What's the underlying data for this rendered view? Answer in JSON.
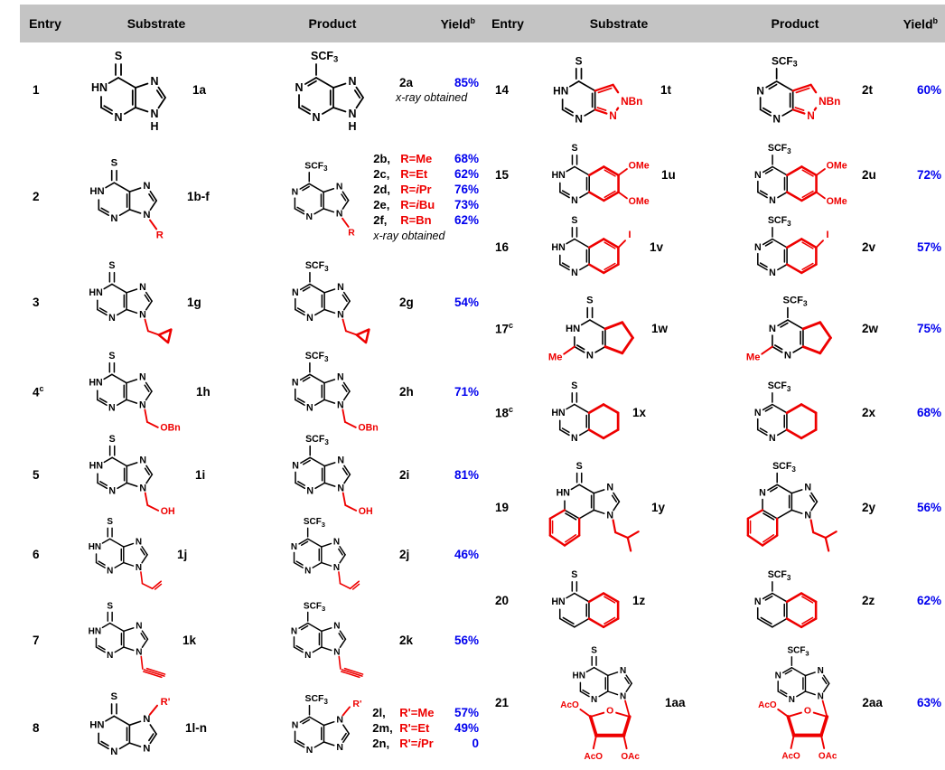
{
  "header": {
    "entry": "Entry",
    "substrate": "Substrate",
    "product": "Product",
    "yield": "Yield",
    "yield_sup": "b"
  },
  "colors": {
    "red": "#ee0000",
    "blue": "#0000ee",
    "header_bg": "#c4c4c4",
    "bond": "#000000"
  },
  "labels": {
    "s": "S",
    "scf": "SCF",
    "scf_sub": "3",
    "hn": "HN",
    "n": "N",
    "h": "H",
    "r": "R",
    "r_prime": "R'",
    "obn": "OBn",
    "oh": "OH",
    "nbn": "NBn",
    "ome": "OMe",
    "iodo": "I",
    "me": "Me",
    "aco": "AcO",
    "oac": "OAc",
    "o": "O"
  },
  "left_rows": [
    {
      "entry": "1",
      "substrate_label": "1a",
      "structure": "purine_h",
      "product_label": "2a",
      "yields": [
        {
          "value": "85%"
        }
      ],
      "note": "x-ray obtained"
    },
    {
      "entry": "2",
      "substrate_label": "1b-f",
      "structure": "purine_r",
      "yields": [
        {
          "code": "2b,",
          "sub": "R=Me",
          "value": "68%"
        },
        {
          "code": "2c,",
          "sub": "R=Et",
          "value": "62%"
        },
        {
          "code": "2d,",
          "sub": "R=iPr",
          "value": "76%"
        },
        {
          "code": "2e,",
          "sub": "R=iBu",
          "value": "73%"
        },
        {
          "code": "2f,",
          "sub": "R=Bn",
          "value": "62%"
        }
      ],
      "note": "x-ray obtained"
    },
    {
      "entry": "3",
      "substrate_label": "1g",
      "structure": "purine_cpr",
      "product_label": "2g",
      "yields": [
        {
          "value": "54%"
        }
      ]
    },
    {
      "entry": "4",
      "entry_sup": "c",
      "substrate_label": "1h",
      "structure": "purine_obn",
      "product_label": "2h",
      "yields": [
        {
          "value": "71%"
        }
      ]
    },
    {
      "entry": "5",
      "substrate_label": "1i",
      "structure": "purine_oh",
      "product_label": "2i",
      "yields": [
        {
          "value": "81%"
        }
      ]
    },
    {
      "entry": "6",
      "substrate_label": "1j",
      "structure": "purine_allyl",
      "product_label": "2j",
      "yields": [
        {
          "value": "46%"
        }
      ]
    },
    {
      "entry": "7",
      "substrate_label": "1k",
      "structure": "purine_yne",
      "product_label": "2k",
      "yields": [
        {
          "value": "56%"
        }
      ]
    },
    {
      "entry": "8",
      "substrate_label": "1l-n",
      "structure": "purine_n7",
      "yields": [
        {
          "code": "2l,",
          "sub": "R'=Me",
          "value": "57%"
        },
        {
          "code": "2m,",
          "sub": "R'=Et",
          "value": "49%"
        },
        {
          "code": "2n,",
          "sub": "R'=iPr",
          "value": "0"
        }
      ]
    }
  ],
  "right_rows": [
    {
      "entry": "14",
      "substrate_label": "1t",
      "structure": "pyrazolo",
      "product_label": "2t",
      "yields": [
        {
          "value": "60%"
        }
      ]
    },
    {
      "entry": "15",
      "substrate_label": "1u",
      "structure": "quinaz_ome",
      "product_label": "2u",
      "yields": [
        {
          "value": "72%"
        }
      ]
    },
    {
      "entry": "16",
      "substrate_label": "1v",
      "structure": "quinaz_i",
      "product_label": "2v",
      "yields": [
        {
          "value": "57%"
        }
      ]
    },
    {
      "entry": "17",
      "entry_sup": "c",
      "substrate_label": "1w",
      "structure": "cpenta_me",
      "product_label": "2w",
      "yields": [
        {
          "value": "75%"
        }
      ]
    },
    {
      "entry": "18",
      "entry_sup": "c",
      "substrate_label": "1x",
      "structure": "chexa",
      "product_label": "2x",
      "yields": [
        {
          "value": "68%"
        }
      ]
    },
    {
      "entry": "19",
      "substrate_label": "1y",
      "structure": "imqui",
      "product_label": "2y",
      "yields": [
        {
          "value": "56%"
        }
      ]
    },
    {
      "entry": "20",
      "substrate_label": "1z",
      "structure": "isoqui",
      "product_label": "2z",
      "yields": [
        {
          "value": "62%"
        }
      ]
    },
    {
      "entry": "21",
      "substrate_label": "1aa",
      "structure": "riboside",
      "product_label": "2aa",
      "yields": [
        {
          "value": "63%"
        }
      ]
    }
  ]
}
